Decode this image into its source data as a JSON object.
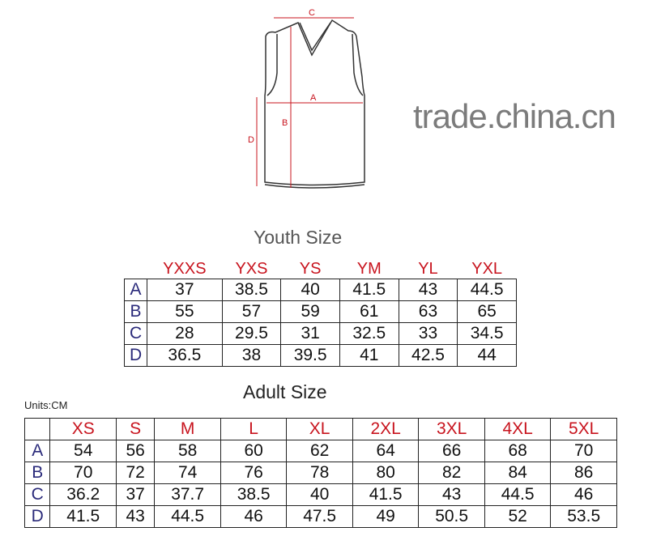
{
  "diagram": {
    "labels": {
      "a": "A",
      "b": "B",
      "c": "C",
      "d": "D"
    },
    "measure_color": "#c8141e"
  },
  "watermark": "trade.china.cn",
  "youth": {
    "title": "Youth Size",
    "headers": [
      "YXXS",
      "YXS",
      "YS",
      "YM",
      "YL",
      "YXL"
    ],
    "rows": [
      {
        "label": "A",
        "values": [
          "37",
          "38.5",
          "40",
          "41.5",
          "43",
          "44.5"
        ]
      },
      {
        "label": "B",
        "values": [
          "55",
          "57",
          "59",
          "61",
          "63",
          "65"
        ]
      },
      {
        "label": "C",
        "values": [
          "28",
          "29.5",
          "31",
          "32.5",
          "33",
          "34.5"
        ]
      },
      {
        "label": "D",
        "values": [
          "36.5",
          "38",
          "39.5",
          "41",
          "42.5",
          "44"
        ]
      }
    ]
  },
  "units": "Units:CM",
  "adult": {
    "title": "Adult Size",
    "headers": [
      "XS",
      "S",
      "M",
      "L",
      "XL",
      "2XL",
      "3XL",
      "4XL",
      "5XL"
    ],
    "rows": [
      {
        "label": "A",
        "values": [
          "54",
          "56",
          "58",
          "60",
          "62",
          "64",
          "66",
          "68",
          "70"
        ]
      },
      {
        "label": "B",
        "values": [
          "70",
          "72",
          "74",
          "76",
          "78",
          "80",
          "82",
          "84",
          "86"
        ]
      },
      {
        "label": "C",
        "values": [
          "36.2",
          "37",
          "37.7",
          "38.5",
          "40",
          "41.5",
          "43",
          "44.5",
          "46"
        ]
      },
      {
        "label": "D",
        "values": [
          "41.5",
          "43",
          "44.5",
          "46",
          "47.5",
          "49",
          "50.5",
          "52",
          "53.5"
        ]
      }
    ]
  }
}
